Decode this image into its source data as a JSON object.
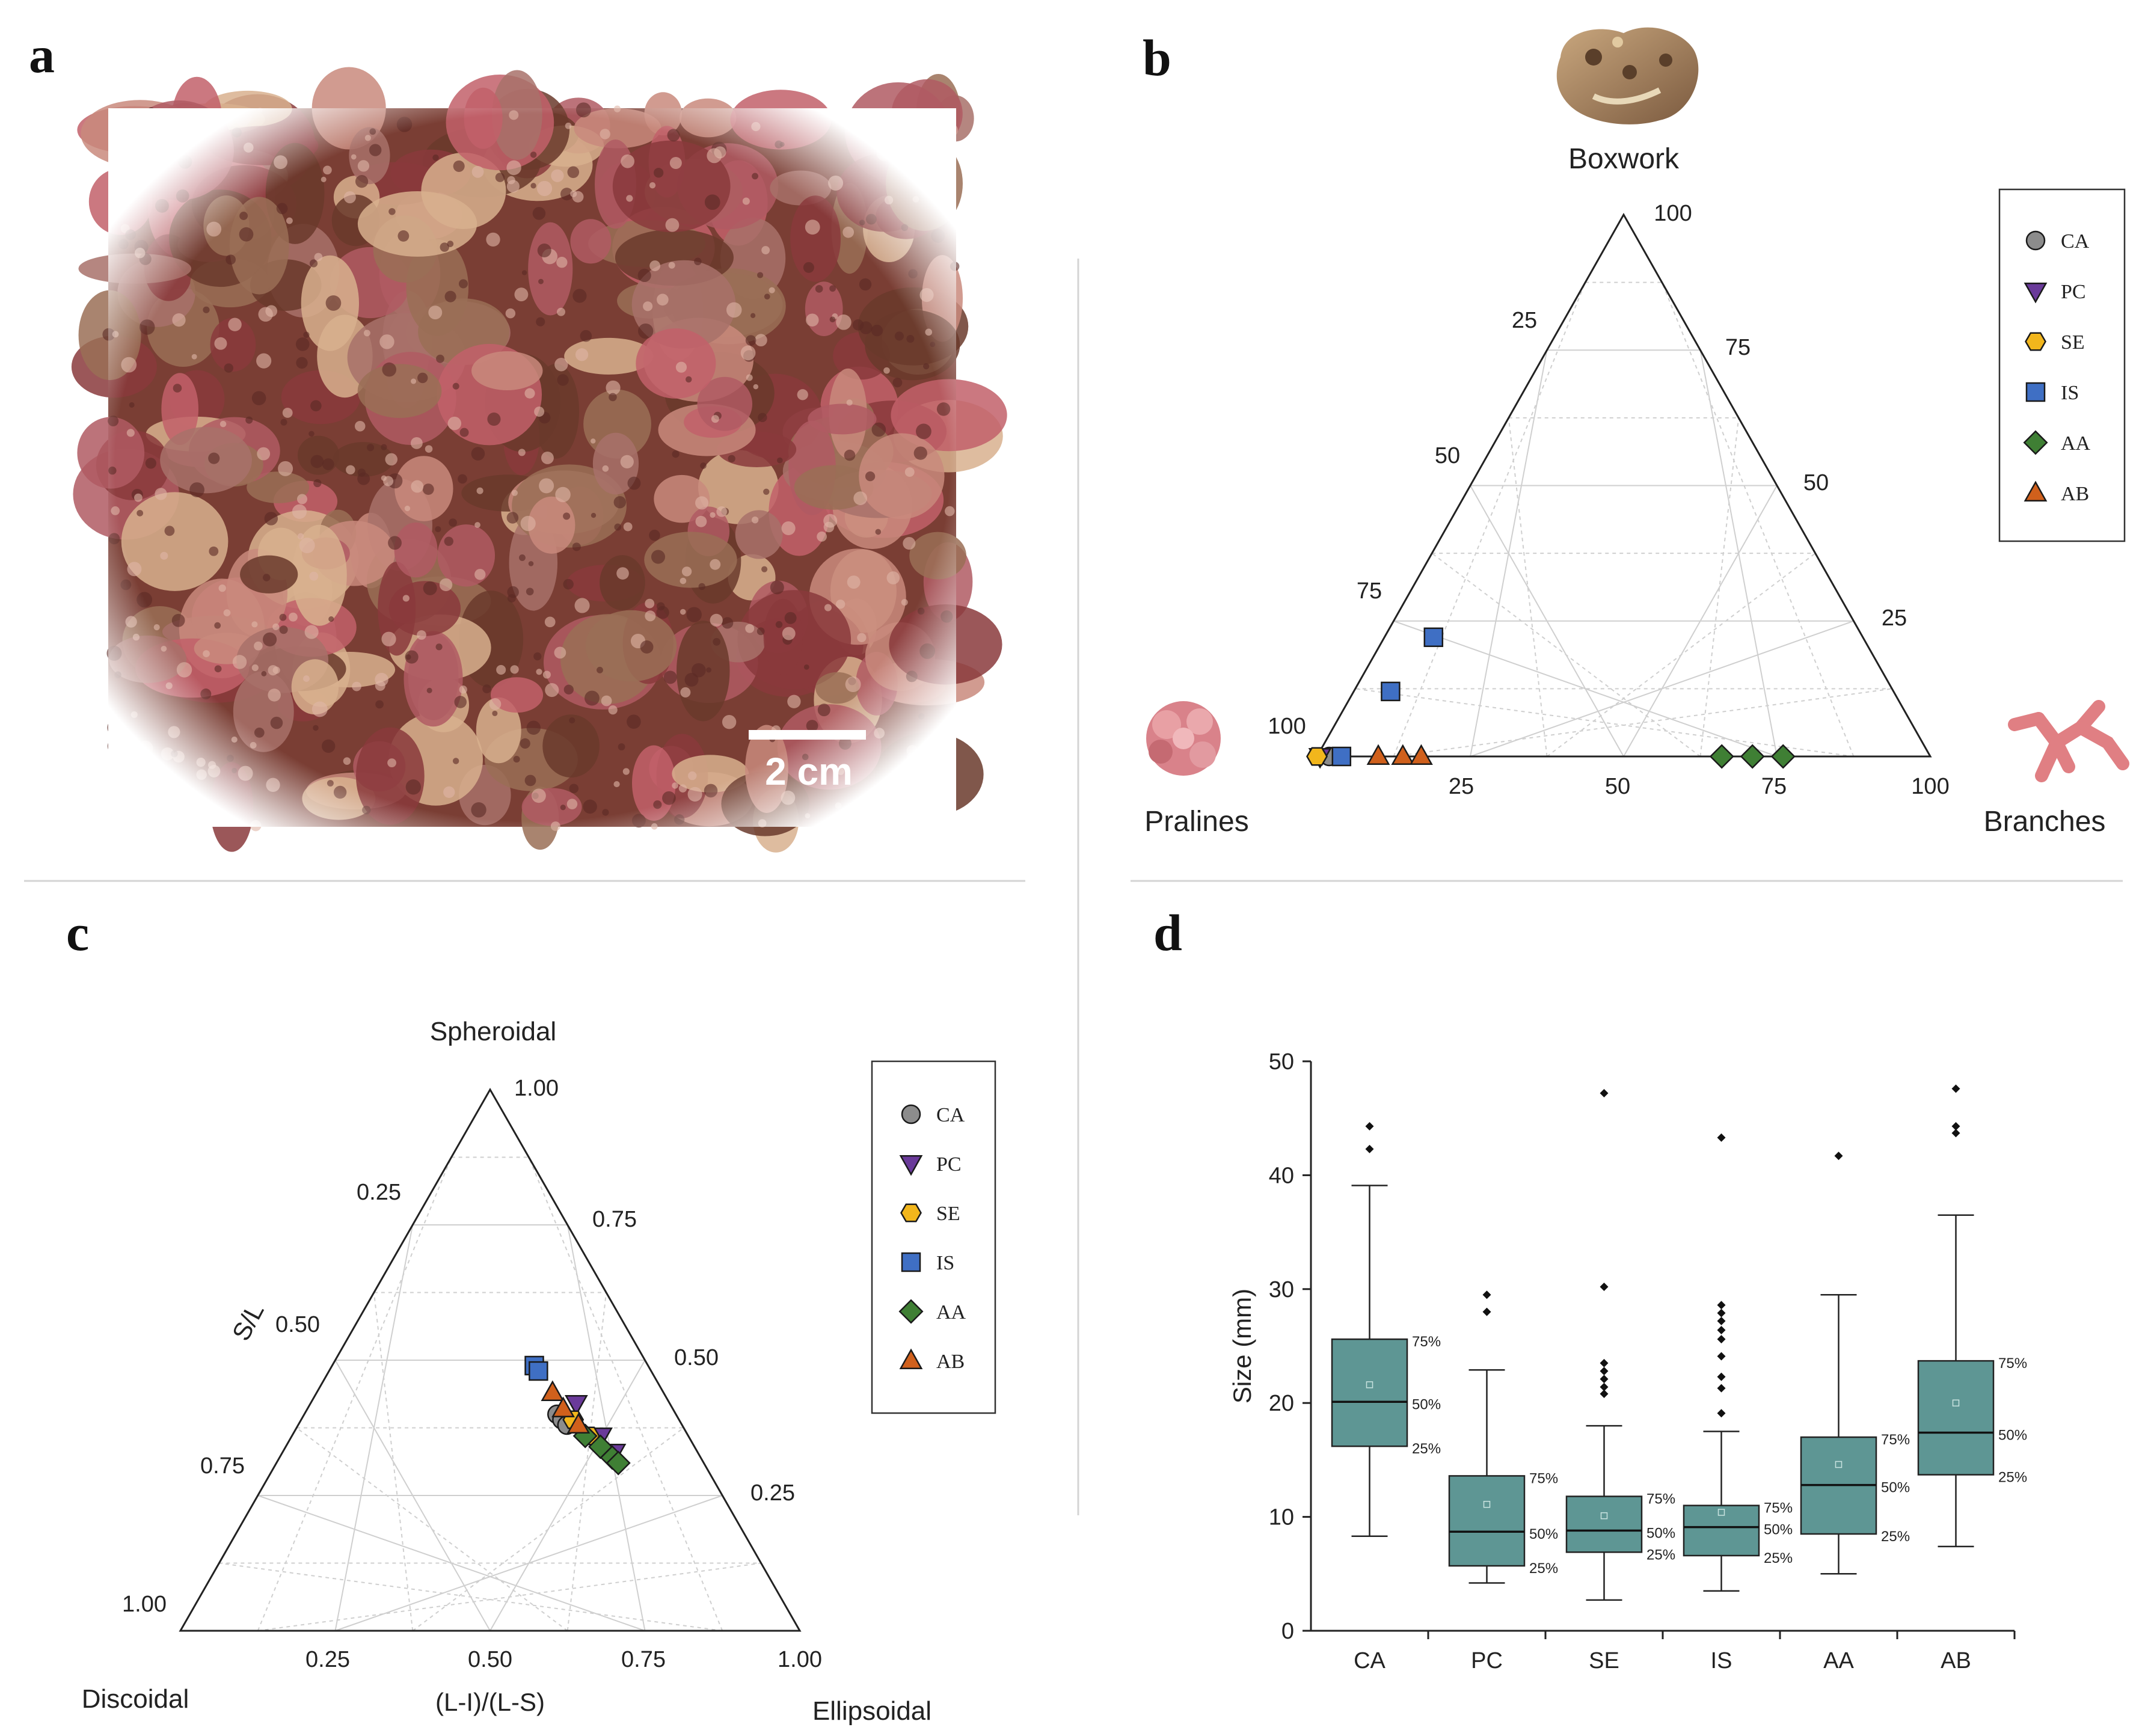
{
  "panels": {
    "a": {
      "letter": "a",
      "scale_bar_label": "2 cm",
      "photo_colors": [
        "#8a3a3c",
        "#b05a63",
        "#c98a7c",
        "#d8b08e",
        "#a8716a",
        "#6a3a2c",
        "#c2606a",
        "#9a6e56"
      ]
    },
    "b": {
      "letter": "b",
      "top_vertex": "Boxwork",
      "left_vertex": "Pralines",
      "right_vertex": "Branches",
      "ticks_bottom": [
        "25",
        "50",
        "75",
        "100"
      ],
      "ticks_left": [
        "25",
        "50",
        "75",
        "100"
      ],
      "ticks_right": [
        "25",
        "50",
        "75",
        "100"
      ],
      "legend": [
        "CA",
        "PC",
        "SE",
        "IS",
        "AA",
        "AB"
      ]
    },
    "c": {
      "letter": "c",
      "top_vertex": "Spheroidal",
      "left_vertex": "Discoidal",
      "right_vertex": "Ellipsoidal",
      "left_axis_label": "S/L",
      "bottom_axis_label": "(L-I)/(L-S)",
      "ticks_bottom": [
        "0.25",
        "0.50",
        "0.75",
        "1.00"
      ],
      "ticks_left": [
        "0.25",
        "0.50",
        "0.75",
        "1.00"
      ],
      "ticks_right": [
        "0.25",
        "0.50",
        "0.75",
        "1.00"
      ],
      "legend": [
        "CA",
        "PC",
        "SE",
        "IS",
        "AA",
        "AB"
      ]
    },
    "d": {
      "letter": "d"
    }
  },
  "styles": {
    "CA": {
      "marker": "circle",
      "color": "#8c8c8c"
    },
    "PC": {
      "marker": "triangle-down",
      "color": "#6a3a9a"
    },
    "SE": {
      "marker": "hexagon",
      "color": "#f2b61c"
    },
    "IS": {
      "marker": "square",
      "color": "#3f6fc4"
    },
    "AA": {
      "marker": "diamond",
      "color": "#3f7f34"
    },
    "AB": {
      "marker": "triangle-up",
      "color": "#d0601c"
    },
    "box_fill": "#5e9694",
    "grid": "#cfcfcf"
  },
  "chart_data": [
    {
      "panel": "b",
      "type": "ternary-scatter",
      "components": [
        "Boxwork",
        "Pralines",
        "Branches"
      ],
      "series": [
        {
          "name": "CA",
          "points": [
            {
              "boxwork": 0,
              "branches": 2,
              "pralines": 98
            }
          ]
        },
        {
          "name": "PC",
          "points": [
            {
              "boxwork": 0,
              "branches": 0.5,
              "pralines": 99.5
            }
          ]
        },
        {
          "name": "SE",
          "points": [
            {
              "boxwork": 0,
              "branches": 0,
              "pralines": 100
            }
          ]
        },
        {
          "name": "IS",
          "points": [
            {
              "boxwork": 0,
              "branches": 4,
              "pralines": 96
            },
            {
              "boxwork": 12,
              "branches": 6,
              "pralines": 82
            },
            {
              "boxwork": 22,
              "branches": 8,
              "pralines": 70
            }
          ]
        },
        {
          "name": "AA",
          "points": [
            {
              "boxwork": 0,
              "branches": 66,
              "pralines": 34
            },
            {
              "boxwork": 0,
              "branches": 71,
              "pralines": 29
            },
            {
              "boxwork": 0,
              "branches": 76,
              "pralines": 24
            }
          ]
        },
        {
          "name": "AB",
          "points": [
            {
              "boxwork": 0,
              "branches": 10,
              "pralines": 90
            },
            {
              "boxwork": 0,
              "branches": 14,
              "pralines": 86
            },
            {
              "boxwork": 0,
              "branches": 17,
              "pralines": 83
            }
          ]
        }
      ]
    },
    {
      "panel": "c",
      "type": "ternary-scatter",
      "components": [
        "Spheroidal",
        "Discoidal",
        "Ellipsoidal"
      ],
      "axis_S_L_range": [
        0,
        1
      ],
      "axis_LI_LS_range": [
        0,
        1
      ],
      "series": [
        {
          "name": "CA",
          "points": [
            {
              "s_l": 0.4,
              "li_ls": 0.68
            },
            {
              "s_l": 0.39,
              "li_ls": 0.69
            },
            {
              "s_l": 0.38,
              "li_ls": 0.7
            }
          ]
        },
        {
          "name": "PC",
          "points": [
            {
              "s_l": 0.42,
              "li_ls": 0.74
            },
            {
              "s_l": 0.36,
              "li_ls": 0.78
            },
            {
              "s_l": 0.33,
              "li_ls": 0.8
            }
          ]
        },
        {
          "name": "SE",
          "points": [
            {
              "s_l": 0.39,
              "li_ls": 0.72
            },
            {
              "s_l": 0.36,
              "li_ls": 0.75
            }
          ]
        },
        {
          "name": "IS",
          "points": [
            {
              "s_l": 0.49,
              "li_ls": 0.64
            },
            {
              "s_l": 0.48,
              "li_ls": 0.65
            }
          ]
        },
        {
          "name": "AA",
          "points": [
            {
              "s_l": 0.36,
              "li_ls": 0.74
            },
            {
              "s_l": 0.34,
              "li_ls": 0.77
            },
            {
              "s_l": 0.32,
              "li_ls": 0.79
            },
            {
              "s_l": 0.31,
              "li_ls": 0.8
            }
          ]
        },
        {
          "name": "AB",
          "points": [
            {
              "s_l": 0.44,
              "li_ls": 0.68
            },
            {
              "s_l": 0.41,
              "li_ls": 0.7
            },
            {
              "s_l": 0.38,
              "li_ls": 0.73
            }
          ]
        }
      ]
    },
    {
      "panel": "d",
      "type": "box",
      "ylabel": "Size (mm)",
      "ylim": [
        0,
        50
      ],
      "yticks": [
        "0",
        "10",
        "20",
        "30",
        "40",
        "50"
      ],
      "percentile_labels": [
        "75%",
        "50%",
        "25%"
      ],
      "categories": [
        "CA",
        "PC",
        "SE",
        "IS",
        "AA",
        "AB"
      ],
      "boxes": [
        {
          "name": "CA",
          "whisker_low": 8.3,
          "q1": 16.2,
          "median": 20.1,
          "q3": 25.6,
          "whisker_high": 39.1,
          "mean": 21.6,
          "outliers": [
            42.3,
            44.3
          ]
        },
        {
          "name": "PC",
          "whisker_low": 4.2,
          "q1": 5.7,
          "median": 8.7,
          "q3": 13.6,
          "whisker_high": 22.9,
          "mean": 11.1,
          "outliers": [
            28.0,
            29.5
          ]
        },
        {
          "name": "SE",
          "whisker_low": 2.7,
          "q1": 6.9,
          "median": 8.8,
          "q3": 11.8,
          "whisker_high": 18.0,
          "mean": 10.1,
          "outliers": [
            20.8,
            21.4,
            22.1,
            22.8,
            23.5,
            30.2,
            47.2
          ]
        },
        {
          "name": "IS",
          "whisker_low": 3.5,
          "q1": 6.6,
          "median": 9.1,
          "q3": 11.0,
          "whisker_high": 17.5,
          "mean": 10.4,
          "outliers": [
            19.1,
            21.3,
            22.3,
            24.1,
            25.6,
            26.4,
            27.2,
            27.9,
            28.6,
            43.3
          ]
        },
        {
          "name": "AA",
          "whisker_low": 5.0,
          "q1": 8.5,
          "median": 12.8,
          "q3": 17.0,
          "whisker_high": 29.5,
          "mean": 14.6,
          "outliers": [
            41.7
          ]
        },
        {
          "name": "AB",
          "whisker_low": 7.4,
          "q1": 13.7,
          "median": 17.4,
          "q3": 23.7,
          "whisker_high": 36.5,
          "mean": 20.0,
          "outliers": [
            43.7,
            44.3,
            47.6
          ]
        }
      ]
    }
  ]
}
